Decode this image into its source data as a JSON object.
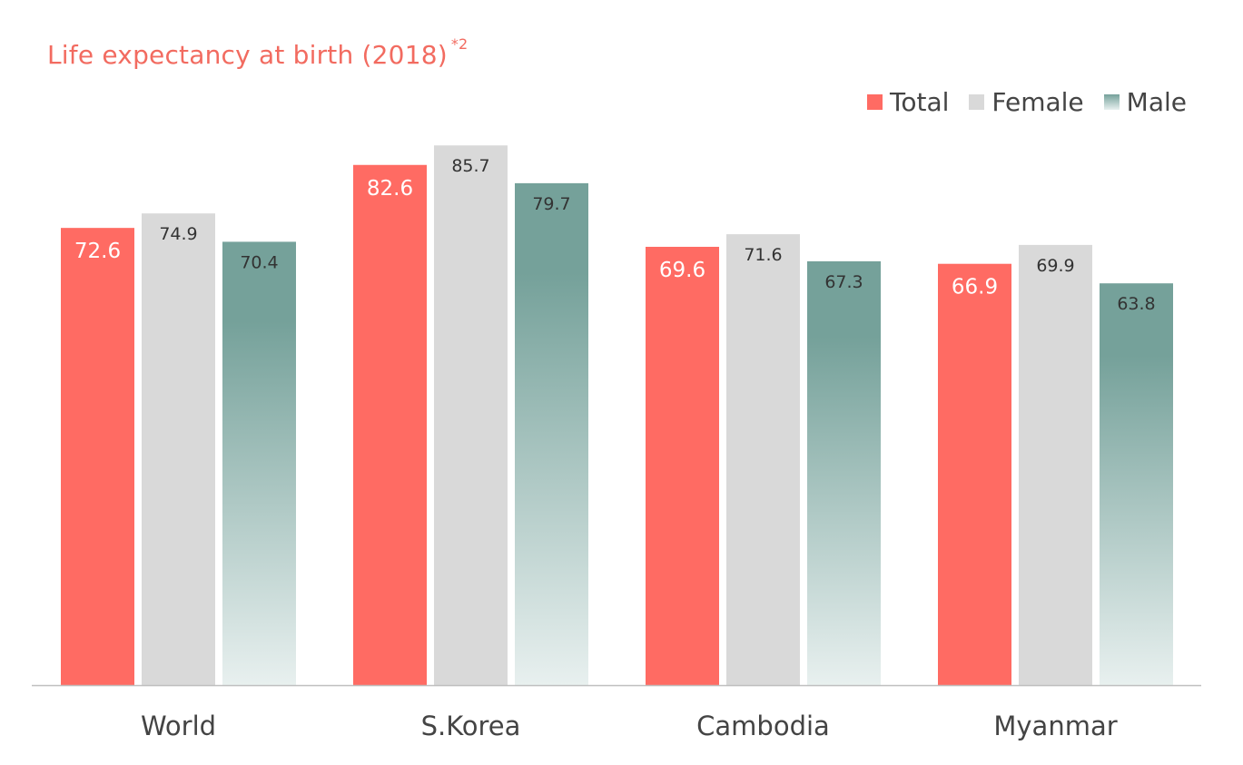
{
  "chart_data": {
    "type": "bar",
    "title": "Life expectancy at birth (2018)",
    "title_note": "*2",
    "categories": [
      "World",
      "S.Korea",
      "Cambodia",
      "Myanmar"
    ],
    "series": [
      {
        "name": "Total",
        "values": [
          72.6,
          82.6,
          69.6,
          66.9
        ],
        "color": "#ff6b63",
        "label_color": "#ffffff"
      },
      {
        "name": "Female",
        "values": [
          74.9,
          85.7,
          71.6,
          69.9
        ],
        "color": "#d9d9d9",
        "label_color": "#333333"
      },
      {
        "name": "Male",
        "values": [
          70.4,
          79.7,
          67.3,
          63.8
        ],
        "color": "#75a19a",
        "color_end": "#e8f0ef",
        "label_color": "#333333"
      }
    ],
    "ylim": [
      0,
      100
    ],
    "grid": false,
    "legend_position": "top-right",
    "xlabel": "",
    "ylabel": ""
  },
  "colors": {
    "title": "#f26b60",
    "axis": "#bfbfbf",
    "category_label": "#444444"
  }
}
